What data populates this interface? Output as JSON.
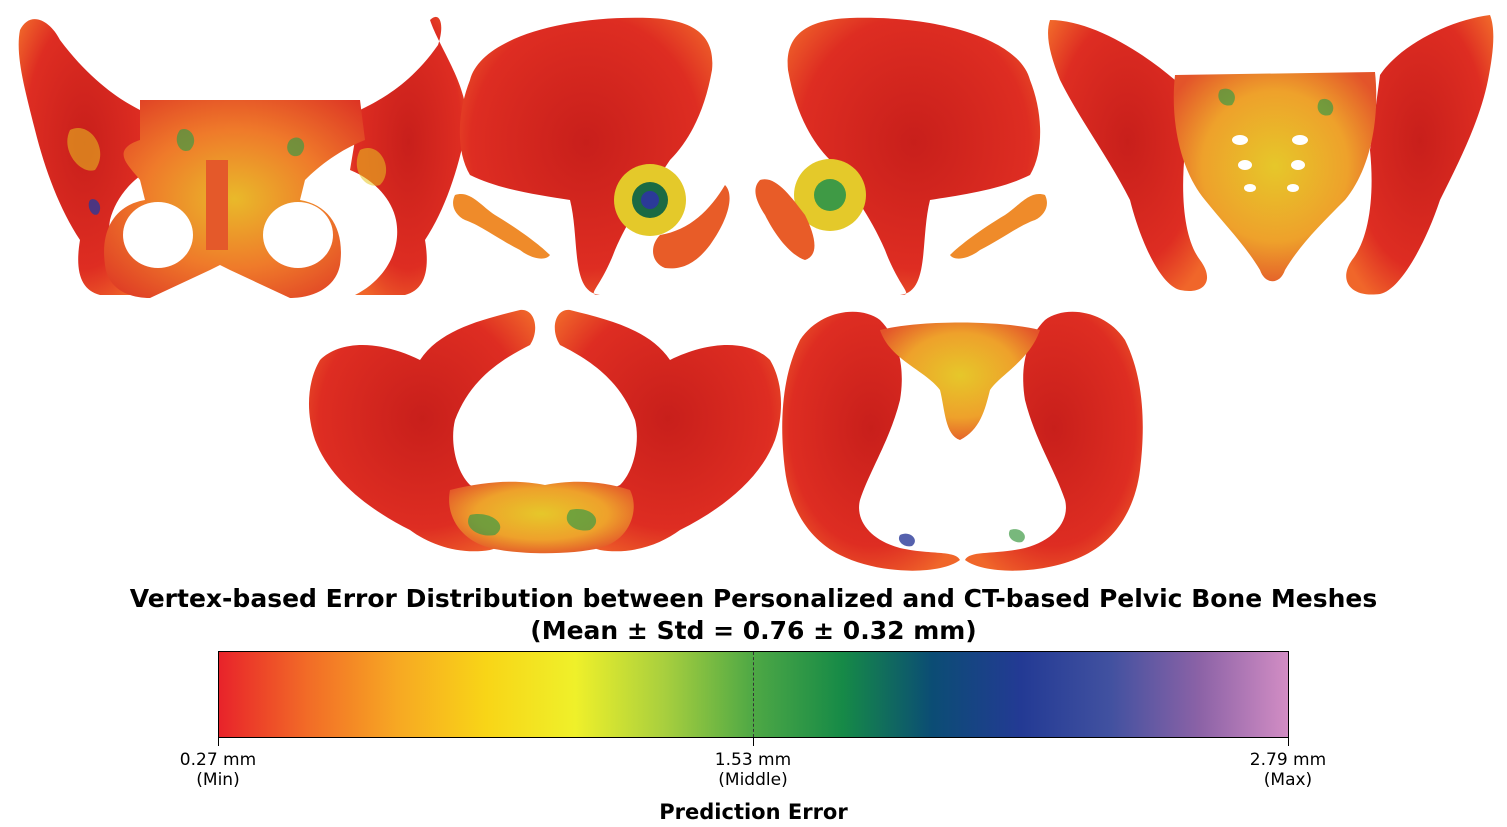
{
  "figure": {
    "title_line1": "Vertex-based Error Distribution between Personalized and CT-based Pelvic Bone Meshes",
    "title_line2": "(Mean ± Std = 0.76 ± 0.32 mm)"
  },
  "colorbar": {
    "label": "Prediction Error",
    "stops": [
      "#e8232a",
      "#f26c27",
      "#f7a823",
      "#f8d517",
      "#eff02a",
      "#a8cf3e",
      "#4ea845",
      "#168a47",
      "#0b4d74",
      "#233a94",
      "#4151a0",
      "#8b62a6",
      "#d28dc4"
    ],
    "ticks": [
      {
        "value": "0.27 mm",
        "caption": "(Min)"
      },
      {
        "value": "1.53 mm",
        "caption": "(Middle)"
      },
      {
        "value": "2.79 mm",
        "caption": "(Max)"
      }
    ]
  },
  "views": [
    {
      "name": "anterior-view"
    },
    {
      "name": "right-lateral-view"
    },
    {
      "name": "left-lateral-view"
    },
    {
      "name": "posterior-view"
    },
    {
      "name": "superior-view"
    },
    {
      "name": "inferior-view"
    }
  ],
  "colors": {
    "bone_red": "#d8261f",
    "bone_orange": "#ee6a24",
    "bone_yellow": "#e8c421",
    "bone_green": "#3f9a45",
    "bone_blue": "#2b3a98"
  }
}
